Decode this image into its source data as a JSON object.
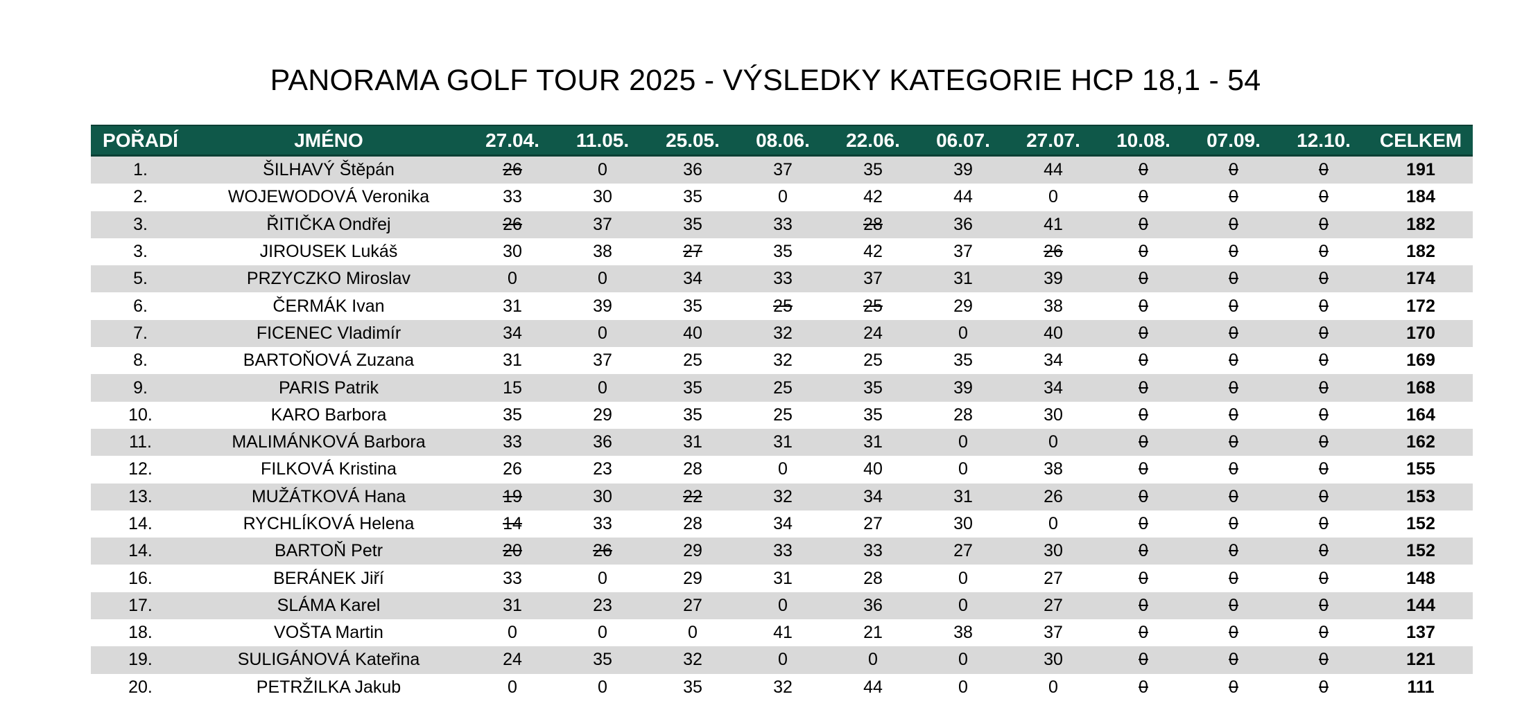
{
  "title": "PANORAMA GOLF TOUR 2025 - VÝSLEDKY KATEGORIE HCP 18,1 - 54",
  "headers": {
    "rank": "POŘADÍ",
    "name": "JMÉNO",
    "dates": [
      "27.04.",
      "11.05.",
      "25.05.",
      "08.06.",
      "22.06.",
      "06.07.",
      "27.07.",
      "10.08.",
      "07.09.",
      "12.10."
    ],
    "total": "CELKEM"
  },
  "colors": {
    "header_bg": "#0f5849",
    "header_text": "#ffffff",
    "stripe": "#d9d9d9"
  },
  "rows": [
    {
      "rank": "1.",
      "name": "ŠILHAVÝ Štěpán",
      "scores": [
        "26",
        "0",
        "36",
        "37",
        "35",
        "39",
        "44",
        "0",
        "0",
        "0"
      ],
      "struck": [
        0,
        7,
        8,
        9
      ],
      "total": "191"
    },
    {
      "rank": "2.",
      "name": "WOJEWODOVÁ Veronika",
      "scores": [
        "33",
        "30",
        "35",
        "0",
        "42",
        "44",
        "0",
        "0",
        "0",
        "0"
      ],
      "struck": [
        7,
        8,
        9
      ],
      "total": "184"
    },
    {
      "rank": "3.",
      "name": "ŘITIČKA Ondřej",
      "scores": [
        "26",
        "37",
        "35",
        "33",
        "28",
        "36",
        "41",
        "0",
        "0",
        "0"
      ],
      "struck": [
        0,
        4,
        7,
        8,
        9
      ],
      "total": "182"
    },
    {
      "rank": "3.",
      "name": "JIROUSEK Lukáš",
      "scores": [
        "30",
        "38",
        "27",
        "35",
        "42",
        "37",
        "26",
        "0",
        "0",
        "0"
      ],
      "struck": [
        2,
        6,
        7,
        8,
        9
      ],
      "total": "182"
    },
    {
      "rank": "5.",
      "name": "PRZYCZKO Miroslav",
      "scores": [
        "0",
        "0",
        "34",
        "33",
        "37",
        "31",
        "39",
        "0",
        "0",
        "0"
      ],
      "struck": [
        7,
        8,
        9
      ],
      "total": "174"
    },
    {
      "rank": "6.",
      "name": "ČERMÁK Ivan",
      "scores": [
        "31",
        "39",
        "35",
        "25",
        "25",
        "29",
        "38",
        "0",
        "0",
        "0"
      ],
      "struck": [
        3,
        4,
        7,
        8,
        9
      ],
      "total": "172"
    },
    {
      "rank": "7.",
      "name": "FICENEC Vladimír",
      "scores": [
        "34",
        "0",
        "40",
        "32",
        "24",
        "0",
        "40",
        "0",
        "0",
        "0"
      ],
      "struck": [
        7,
        8,
        9
      ],
      "total": "170"
    },
    {
      "rank": "8.",
      "name": "BARTOŇOVÁ Zuzana",
      "scores": [
        "31",
        "37",
        "25",
        "32",
        "25",
        "35",
        "34",
        "0",
        "0",
        "0"
      ],
      "struck": [
        7,
        8,
        9
      ],
      "total": "169"
    },
    {
      "rank": "9.",
      "name": "PARIS Patrik",
      "scores": [
        "15",
        "0",
        "35",
        "25",
        "35",
        "39",
        "34",
        "0",
        "0",
        "0"
      ],
      "struck": [
        7,
        8,
        9
      ],
      "total": "168"
    },
    {
      "rank": "10.",
      "name": "KARO Barbora",
      "scores": [
        "35",
        "29",
        "35",
        "25",
        "35",
        "28",
        "30",
        "0",
        "0",
        "0"
      ],
      "struck": [
        7,
        8,
        9
      ],
      "total": "164"
    },
    {
      "rank": "11.",
      "name": "MALIMÁNKOVÁ Barbora",
      "scores": [
        "33",
        "36",
        "31",
        "31",
        "31",
        "0",
        "0",
        "0",
        "0",
        "0"
      ],
      "struck": [
        7,
        8,
        9
      ],
      "total": "162"
    },
    {
      "rank": "12.",
      "name": "FILKOVÁ Kristina",
      "scores": [
        "26",
        "23",
        "28",
        "0",
        "40",
        "0",
        "38",
        "0",
        "0",
        "0"
      ],
      "struck": [
        7,
        8,
        9
      ],
      "total": "155"
    },
    {
      "rank": "13.",
      "name": "MUŽÁTKOVÁ Hana",
      "scores": [
        "19",
        "30",
        "22",
        "32",
        "34",
        "31",
        "26",
        "0",
        "0",
        "0"
      ],
      "struck": [
        0,
        2,
        7,
        8,
        9
      ],
      "total": "153"
    },
    {
      "rank": "14.",
      "name": "RYCHLÍKOVÁ Helena",
      "scores": [
        "14",
        "33",
        "28",
        "34",
        "27",
        "30",
        "0",
        "0",
        "0",
        "0"
      ],
      "struck": [
        0,
        7,
        8,
        9
      ],
      "total": "152"
    },
    {
      "rank": "14.",
      "name": "BARTOŇ Petr",
      "scores": [
        "20",
        "26",
        "29",
        "33",
        "33",
        "27",
        "30",
        "0",
        "0",
        "0"
      ],
      "struck": [
        0,
        1,
        7,
        8,
        9
      ],
      "total": "152"
    },
    {
      "rank": "16.",
      "name": "BERÁNEK Jiří",
      "scores": [
        "33",
        "0",
        "29",
        "31",
        "28",
        "0",
        "27",
        "0",
        "0",
        "0"
      ],
      "struck": [
        7,
        8,
        9
      ],
      "total": "148"
    },
    {
      "rank": "17.",
      "name": "SLÁMA Karel",
      "scores": [
        "31",
        "23",
        "27",
        "0",
        "36",
        "0",
        "27",
        "0",
        "0",
        "0"
      ],
      "struck": [
        7,
        8,
        9
      ],
      "total": "144"
    },
    {
      "rank": "18.",
      "name": "VOŠTA Martin",
      "scores": [
        "0",
        "0",
        "0",
        "41",
        "21",
        "38",
        "37",
        "0",
        "0",
        "0"
      ],
      "struck": [
        7,
        8,
        9
      ],
      "total": "137"
    },
    {
      "rank": "19.",
      "name": "SULIGÁNOVÁ Kateřina",
      "scores": [
        "24",
        "35",
        "32",
        "0",
        "0",
        "0",
        "30",
        "0",
        "0",
        "0"
      ],
      "struck": [
        7,
        8,
        9
      ],
      "total": "121"
    },
    {
      "rank": "20.",
      "name": "PETRŽILKA Jakub",
      "scores": [
        "0",
        "0",
        "35",
        "32",
        "44",
        "0",
        "0",
        "0",
        "0",
        "0"
      ],
      "struck": [
        7,
        8,
        9
      ],
      "total": "111"
    }
  ]
}
